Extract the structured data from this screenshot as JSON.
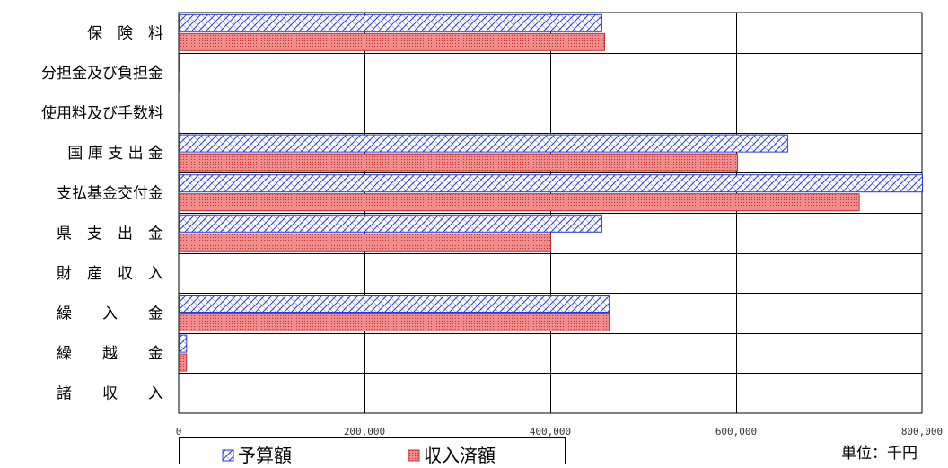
{
  "chart_data": {
    "type": "bar",
    "orientation": "horizontal",
    "categories": [
      "保　険　料",
      "分担金及び負担金",
      "使用料及び手数料",
      "国 庫 支 出 金",
      "支払基金交付金",
      "県　支　出　金",
      "財　産　収　入",
      "繰　　入　　金",
      "繰　　越　　金",
      "諸　　収　　入"
    ],
    "series": [
      {
        "name": "予算額",
        "color": "#2b3bd6",
        "pattern": "crosshatch",
        "values": [
          455000,
          1000,
          0,
          655000,
          800000,
          455000,
          0,
          463000,
          8000,
          0
        ]
      },
      {
        "name": "収入済額",
        "color": "#e05050",
        "pattern": "dots",
        "values": [
          458000,
          1000,
          0,
          601000,
          732000,
          400000,
          0,
          463000,
          8000,
          0
        ]
      }
    ],
    "xlim": [
      0,
      800000
    ],
    "xticks": [
      0,
      200000,
      400000,
      600000,
      800000
    ],
    "xtick_labels": [
      "0",
      "200,000",
      "400,000",
      "600,000",
      "800,000"
    ],
    "grid": true,
    "legend_position": "bottom-left",
    "unit": "単位：千円"
  }
}
